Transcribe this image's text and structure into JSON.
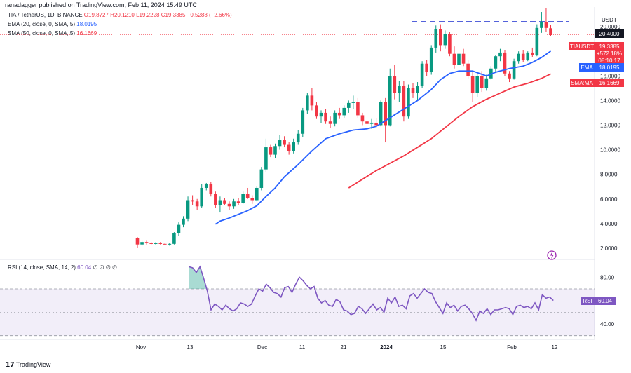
{
  "header": {
    "publisher": "ranadagger published on TradingView.com, Feb 11, 2024 15:49 UTC",
    "symbol_line": "TIA / TetherUS, 1D, BINANCE",
    "ohlc": {
      "o": "O19.8727",
      "h": "H20.1210",
      "l": "L19.2228",
      "c": "C19.3385",
      "chg": "−0.5288 (−2.66%)"
    },
    "ema_label": "EMA (20, close, 0, SMA, 5)",
    "ema_value": "18.0195",
    "sma_label": "SMA (50, close, 0, SMA, 5)",
    "sma_value": "16.1669"
  },
  "rsi_legend": {
    "label": "RSI (14, close, SMA, 14, 2)",
    "value": "60.04",
    "extra": "∅ ∅ ∅ ∅"
  },
  "footer": {
    "brand": "TradingView"
  },
  "price_axis": {
    "currency": "USDT",
    "ticks": [
      "2.0000",
      "4.0000",
      "6.0000",
      "8.0000",
      "10.0000",
      "12.0000",
      "14.0000",
      "16.0000",
      "18.0000",
      "20.0000"
    ]
  },
  "rsi_axis": {
    "ticks": [
      "40.00",
      "60.00",
      "80.00"
    ]
  },
  "x_axis": {
    "ticks": [
      "Nov",
      "13",
      "Dec",
      "11",
      "21",
      "2024",
      "15",
      "Feb",
      "12"
    ]
  },
  "tags": {
    "level": "20.4000",
    "symbol": "TIAUSDT",
    "price": "19.3385",
    "change": "+572.18%",
    "countdown": "08:10:17",
    "ema": "EMA",
    "ema_val": "18.0195",
    "sma": "SMA:MA",
    "sma_val": "16.1669",
    "rsi": "RSI",
    "rsi_val": "60.04"
  },
  "colors": {
    "up": "#089981",
    "down": "#f23645",
    "ema": "#2962ff",
    "sma": "#f23645",
    "rsi": "#7e57c2",
    "level": "#1c2fcf"
  },
  "chart_data": {
    "type": "candlestick",
    "title": "TIA / TetherUS, 1D, BINANCE",
    "resistance_level": 20.4,
    "ylim": [
      1.2,
      21.6
    ],
    "candles": [
      [
        2.8,
        2.9,
        2.0,
        2.3
      ],
      [
        2.3,
        2.6,
        2.2,
        2.5
      ],
      [
        2.5,
        2.6,
        2.3,
        2.4
      ],
      [
        2.4,
        2.5,
        2.3,
        2.35
      ],
      [
        2.35,
        2.5,
        2.25,
        2.4
      ],
      [
        2.4,
        2.5,
        2.3,
        2.35
      ],
      [
        2.35,
        2.45,
        2.25,
        2.3
      ],
      [
        2.3,
        2.4,
        2.2,
        2.35
      ],
      [
        2.35,
        3.3,
        2.3,
        3.2
      ],
      [
        3.2,
        4.1,
        3.0,
        3.9
      ],
      [
        3.9,
        4.6,
        3.7,
        4.4
      ],
      [
        4.4,
        6.2,
        4.2,
        5.9
      ],
      [
        5.9,
        6.3,
        5.5,
        5.8
      ],
      [
        5.8,
        6.0,
        5.1,
        5.4
      ],
      [
        5.4,
        7.2,
        5.3,
        6.9
      ],
      [
        6.9,
        7.3,
        6.7,
        7.2
      ],
      [
        7.2,
        7.4,
        6.2,
        6.4
      ],
      [
        6.4,
        6.6,
        5.3,
        5.5
      ],
      [
        5.5,
        6.2,
        4.9,
        5.9
      ],
      [
        5.9,
        6.1,
        5.5,
        5.6
      ],
      [
        5.6,
        5.8,
        5.1,
        5.4
      ],
      [
        5.4,
        6.0,
        5.2,
        5.8
      ],
      [
        5.8,
        6.1,
        5.5,
        5.7
      ],
      [
        5.7,
        6.6,
        5.6,
        6.4
      ],
      [
        6.4,
        6.9,
        6.0,
        6.1
      ],
      [
        6.1,
        6.3,
        5.6,
        5.9
      ],
      [
        5.9,
        7.0,
        5.8,
        6.9
      ],
      [
        6.9,
        8.6,
        6.7,
        8.4
      ],
      [
        8.4,
        10.9,
        8.2,
        10.2
      ],
      [
        10.2,
        10.4,
        9.4,
        9.6
      ],
      [
        9.6,
        10.5,
        9.3,
        10.3
      ],
      [
        10.3,
        11.2,
        10.0,
        10.8
      ],
      [
        10.8,
        11.1,
        10.2,
        10.4
      ],
      [
        10.4,
        10.6,
        9.6,
        9.9
      ],
      [
        9.9,
        10.9,
        9.7,
        10.6
      ],
      [
        10.6,
        11.6,
        10.4,
        11.3
      ],
      [
        11.3,
        13.4,
        11.0,
        13.2
      ],
      [
        13.2,
        14.6,
        12.9,
        14.4
      ],
      [
        14.4,
        15.0,
        13.2,
        13.6
      ],
      [
        13.6,
        13.9,
        12.5,
        12.7
      ],
      [
        12.7,
        13.2,
        12.2,
        13.0
      ],
      [
        13.0,
        13.3,
        12.1,
        12.3
      ],
      [
        12.3,
        12.7,
        11.8,
        12.1
      ],
      [
        12.1,
        13.2,
        11.9,
        13.0
      ],
      [
        13.0,
        13.4,
        12.5,
        12.8
      ],
      [
        12.8,
        13.6,
        12.6,
        13.4
      ],
      [
        13.4,
        14.0,
        13.0,
        13.8
      ],
      [
        13.8,
        14.4,
        13.3,
        13.9
      ],
      [
        13.9,
        14.2,
        12.6,
        12.8
      ],
      [
        12.8,
        13.0,
        12.0,
        12.3
      ],
      [
        12.3,
        12.6,
        11.8,
        12.1
      ],
      [
        12.1,
        12.5,
        11.7,
        12.2
      ],
      [
        12.2,
        12.6,
        11.8,
        12.0
      ],
      [
        12.0,
        14.0,
        11.9,
        13.9
      ],
      [
        13.9,
        14.2,
        10.6,
        12.0
      ],
      [
        12.0,
        16.6,
        11.9,
        16.0
      ],
      [
        16.0,
        16.9,
        14.1,
        14.6
      ],
      [
        14.6,
        15.6,
        13.9,
        15.2
      ],
      [
        15.2,
        15.6,
        12.3,
        12.7
      ],
      [
        12.7,
        15.3,
        12.5,
        15.0
      ],
      [
        15.0,
        15.4,
        14.2,
        14.6
      ],
      [
        14.6,
        15.5,
        14.0,
        15.2
      ],
      [
        15.2,
        17.2,
        15.0,
        17.0
      ],
      [
        17.0,
        17.3,
        16.0,
        16.3
      ],
      [
        16.3,
        18.5,
        16.1,
        18.3
      ],
      [
        18.3,
        20.1,
        17.9,
        19.8
      ],
      [
        19.8,
        20.2,
        18.0,
        18.5
      ],
      [
        18.5,
        19.7,
        18.2,
        19.4
      ],
      [
        19.4,
        19.6,
        17.6,
        17.8
      ],
      [
        17.8,
        18.4,
        16.6,
        16.9
      ],
      [
        16.9,
        18.1,
        16.7,
        17.8
      ],
      [
        17.8,
        18.2,
        16.8,
        17.0
      ],
      [
        17.0,
        17.3,
        15.8,
        16.0
      ],
      [
        16.0,
        16.3,
        13.9,
        14.6
      ],
      [
        14.6,
        16.2,
        14.3,
        16.0
      ],
      [
        16.0,
        16.4,
        14.7,
        15.0
      ],
      [
        15.0,
        16.1,
        14.8,
        15.8
      ],
      [
        15.8,
        16.8,
        15.7,
        16.6
      ],
      [
        16.6,
        17.7,
        16.3,
        17.6
      ],
      [
        17.6,
        18.2,
        17.2,
        17.9
      ],
      [
        17.9,
        18.1,
        16.0,
        16.2
      ],
      [
        16.2,
        16.4,
        15.5,
        15.8
      ],
      [
        15.8,
        17.4,
        15.7,
        17.2
      ],
      [
        17.2,
        18.0,
        17.0,
        17.8
      ],
      [
        17.8,
        18.1,
        17.1,
        17.3
      ],
      [
        17.3,
        18.0,
        17.2,
        17.9
      ],
      [
        17.9,
        18.3,
        17.5,
        17.7
      ],
      [
        17.7,
        20.2,
        17.6,
        19.9
      ],
      [
        19.9,
        21.2,
        19.5,
        20.4
      ],
      [
        20.4,
        21.5,
        19.6,
        19.9
      ],
      [
        19.8727,
        20.121,
        19.2228,
        19.3385
      ]
    ],
    "ema20": [
      [
        17,
        3.95
      ],
      [
        18,
        4.2
      ],
      [
        20,
        4.45
      ],
      [
        22,
        4.75
      ],
      [
        24,
        5.05
      ],
      [
        26,
        5.45
      ],
      [
        28,
        6.2
      ],
      [
        30,
        6.9
      ],
      [
        32,
        7.8
      ],
      [
        35,
        8.8
      ],
      [
        38,
        9.9
      ],
      [
        41,
        10.9
      ],
      [
        44,
        11.3
      ],
      [
        47,
        11.6
      ],
      [
        50,
        11.7
      ],
      [
        52,
        11.9
      ],
      [
        55,
        12.6
      ],
      [
        58,
        13.3
      ],
      [
        61,
        14.0
      ],
      [
        64,
        14.9
      ],
      [
        66,
        15.7
      ],
      [
        68,
        16.2
      ],
      [
        70,
        16.4
      ],
      [
        73,
        16.4
      ],
      [
        76,
        16.0
      ],
      [
        78,
        16.3
      ],
      [
        81,
        16.6
      ],
      [
        84,
        16.8
      ],
      [
        86,
        17.1
      ],
      [
        88,
        17.5
      ],
      [
        90,
        18.02
      ]
    ],
    "sma50": [
      [
        46,
        6.9
      ],
      [
        49,
        7.6
      ],
      [
        52,
        8.3
      ],
      [
        55,
        8.9
      ],
      [
        58,
        9.5
      ],
      [
        61,
        10.2
      ],
      [
        64,
        10.9
      ],
      [
        67,
        11.8
      ],
      [
        70,
        12.7
      ],
      [
        73,
        13.5
      ],
      [
        76,
        14.1
      ],
      [
        79,
        14.6
      ],
      [
        82,
        15.1
      ],
      [
        85,
        15.4
      ],
      [
        88,
        15.8
      ],
      [
        90,
        16.17
      ]
    ],
    "rsi": {
      "ylim": [
        28,
        94
      ],
      "overbought": 70,
      "oversold": 30,
      "mid": 50,
      "values": [
        [
          14,
          89
        ],
        [
          15,
          88
        ],
        [
          16,
          84
        ],
        [
          17,
          89
        ],
        [
          18,
          79
        ],
        [
          19,
          68
        ],
        [
          20,
          52
        ],
        [
          21,
          57
        ],
        [
          22,
          55
        ],
        [
          23,
          52
        ],
        [
          24,
          56
        ],
        [
          25,
          53
        ],
        [
          26,
          51
        ],
        [
          27,
          53
        ],
        [
          28,
          58
        ],
        [
          29,
          57
        ],
        [
          30,
          55
        ],
        [
          31,
          57
        ],
        [
          32,
          64
        ],
        [
          33,
          70
        ],
        [
          34,
          68
        ],
        [
          35,
          74
        ],
        [
          36,
          71
        ],
        [
          37,
          67
        ],
        [
          38,
          66
        ],
        [
          39,
          63
        ],
        [
          40,
          71
        ],
        [
          41,
          72
        ],
        [
          42,
          67
        ],
        [
          43,
          74
        ],
        [
          44,
          80
        ],
        [
          45,
          77
        ],
        [
          46,
          73
        ],
        [
          47,
          70
        ],
        [
          48,
          72
        ],
        [
          49,
          62
        ],
        [
          50,
          58
        ],
        [
          51,
          60
        ],
        [
          52,
          56
        ],
        [
          53,
          55
        ],
        [
          54,
          61
        ],
        [
          55,
          59
        ],
        [
          56,
          52
        ],
        [
          57,
          51
        ],
        [
          58,
          48
        ],
        [
          59,
          49
        ],
        [
          60,
          55
        ],
        [
          61,
          53
        ],
        [
          62,
          49
        ],
        [
          63,
          53
        ],
        [
          64,
          57
        ],
        [
          65,
          52
        ],
        [
          66,
          54
        ],
        [
          67,
          50
        ],
        [
          68,
          62
        ],
        [
          69,
          58
        ],
        [
          70,
          63
        ],
        [
          71,
          55
        ],
        [
          72,
          56
        ],
        [
          73,
          53
        ],
        [
          74,
          64
        ],
        [
          75,
          66
        ],
        [
          76,
          62
        ],
        [
          77,
          66
        ],
        [
          78,
          70
        ],
        [
          79,
          67
        ],
        [
          80,
          66
        ],
        [
          81,
          59
        ],
        [
          82,
          54
        ],
        [
          83,
          49
        ],
        [
          84,
          58
        ],
        [
          85,
          54
        ],
        [
          86,
          56
        ],
        [
          87,
          51
        ],
        [
          88,
          55
        ],
        [
          89,
          56
        ],
        [
          90,
          53
        ],
        [
          91,
          49
        ],
        [
          92,
          43
        ],
        [
          93,
          51
        ],
        [
          94,
          49
        ],
        [
          95,
          53
        ],
        [
          96,
          48
        ],
        [
          97,
          52
        ],
        [
          98,
          52
        ],
        [
          99,
          53
        ],
        [
          100,
          54
        ],
        [
          101,
          53
        ],
        [
          102,
          48
        ],
        [
          103,
          55
        ],
        [
          104,
          56
        ],
        [
          105,
          54
        ],
        [
          106,
          55
        ],
        [
          107,
          53
        ],
        [
          108,
          58
        ],
        [
          109,
          52
        ],
        [
          110,
          65
        ],
        [
          111,
          62
        ],
        [
          112,
          63
        ],
        [
          113,
          60.04
        ]
      ]
    },
    "x_ticks": [
      "Nov",
      "13",
      "Dec",
      "11",
      "21",
      "2024",
      "15",
      "Feb",
      "12"
    ]
  }
}
